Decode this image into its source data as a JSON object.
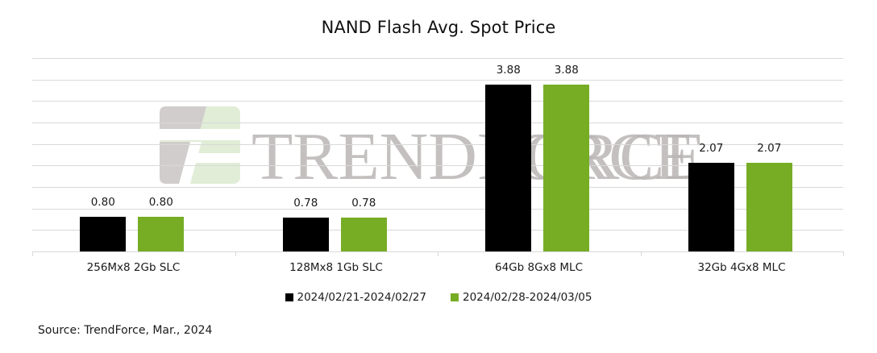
{
  "chart_data": {
    "type": "bar",
    "title": "NAND Flash Avg. Spot Price",
    "xlabel": "",
    "ylabel": "",
    "ylim": [
      0,
      4.5
    ],
    "y_gridlines": [
      0.5,
      1.0,
      1.5,
      2.0,
      2.5,
      3.0,
      3.5,
      4.0,
      4.5
    ],
    "y_tick_labels_visible": false,
    "grid": true,
    "legend_position": "bottom",
    "categories": [
      "256Mx8 2Gb SLC",
      "128Mx8 1Gb SLC",
      "64Gb 8Gx8 MLC",
      "32Gb 4Gx8 MLC"
    ],
    "series": [
      {
        "name": "2024/02/21-2024/02/27",
        "color": "#000000",
        "values": [
          0.8,
          0.78,
          3.88,
          2.07
        ],
        "labels": [
          "0.80",
          "0.78",
          "3.88",
          "2.07"
        ]
      },
      {
        "name": "2024/02/28-2024/03/05",
        "color": "#76AD25",
        "values": [
          0.8,
          0.78,
          3.88,
          2.07
        ],
        "labels": [
          "0.80",
          "0.78",
          "3.88",
          "2.07"
        ]
      }
    ],
    "annotations": [
      "Source: TrendForce, Mar., 2024"
    ]
  },
  "watermark": {
    "text": "TRENDFORCE",
    "logo": "trendforce-logo-icon"
  },
  "source": "Source: TrendForce, Mar., 2024"
}
